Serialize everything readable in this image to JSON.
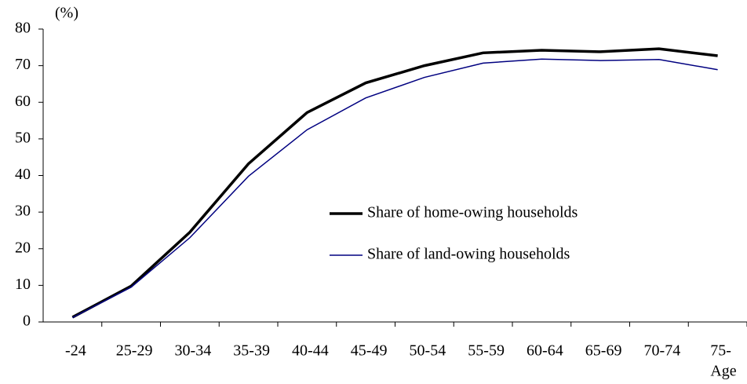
{
  "chart_data": {
    "type": "line",
    "y_label": "(%)",
    "x_label": "Age",
    "categories": [
      "-24",
      "25-29",
      "30-34",
      "35-39",
      "40-44",
      "45-49",
      "50-54",
      "55-59",
      "60-64",
      "65-69",
      "70-74",
      "75-"
    ],
    "series": [
      {
        "name": "Share of home-owing households",
        "color": "#000000",
        "values": [
          1.3,
          9.8,
          24.5,
          43.2,
          57.2,
          65.3,
          70,
          73.5,
          74.2,
          73.8,
          74.6,
          72.7
        ]
      },
      {
        "name": "Share of land-owing households",
        "color": "#000080",
        "values": [
          1.2,
          9.5,
          23,
          39.8,
          52.5,
          61.2,
          66.8,
          70.7,
          71.8,
          71.4,
          71.7,
          68.9
        ]
      }
    ],
    "ylim": [
      0,
      80
    ],
    "yticks": [
      0,
      10,
      20,
      30,
      40,
      50,
      60,
      70,
      80
    ],
    "grid": false
  }
}
